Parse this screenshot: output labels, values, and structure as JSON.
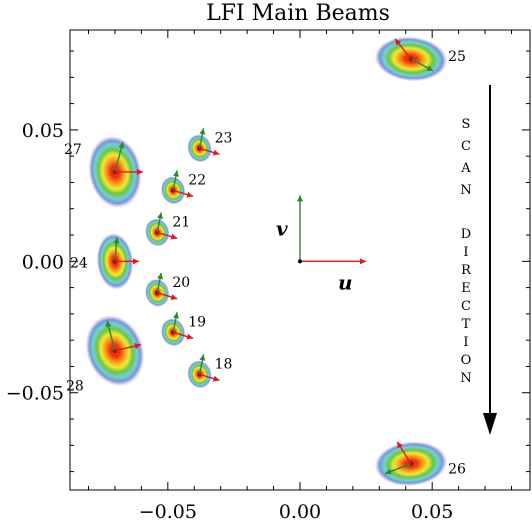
{
  "chart_data": {
    "type": "scatter",
    "title": "LFI Main Beams",
    "xlabel": "",
    "ylabel": "",
    "xlim": [
      -0.087,
      0.087
    ],
    "ylim": [
      -0.087,
      0.088
    ],
    "xticks": [
      -0.05,
      0.0,
      0.05
    ],
    "xtick_labels": [
      "−0.05",
      "0.00",
      "0.05"
    ],
    "yticks": [
      -0.05,
      0.0,
      0.05
    ],
    "ytick_labels": [
      "−0.05",
      "0.00",
      "0.05"
    ],
    "grid": false,
    "beams": [
      {
        "label": "18",
        "x": -0.038,
        "y": -0.043,
        "size": "small"
      },
      {
        "label": "19",
        "x": -0.048,
        "y": -0.027,
        "size": "small"
      },
      {
        "label": "20",
        "x": -0.054,
        "y": -0.012,
        "size": "small"
      },
      {
        "label": "21",
        "x": -0.054,
        "y": 0.011,
        "size": "small"
      },
      {
        "label": "22",
        "x": -0.048,
        "y": 0.027,
        "size": "small"
      },
      {
        "label": "23",
        "x": -0.038,
        "y": 0.043,
        "size": "small"
      },
      {
        "label": "24",
        "x": -0.07,
        "y": 0.0,
        "size": "medium"
      },
      {
        "label": "25",
        "x": 0.042,
        "y": 0.077,
        "size": "large"
      },
      {
        "label": "26",
        "x": 0.042,
        "y": -0.077,
        "size": "large"
      },
      {
        "label": "27",
        "x": -0.07,
        "y": 0.034,
        "size": "large"
      },
      {
        "label": "28",
        "x": -0.07,
        "y": -0.034,
        "size": "large"
      }
    ],
    "uv_axes": {
      "u_label": "u",
      "v_label": "v"
    },
    "scan_direction": {
      "word1": [
        "S",
        "C",
        "A",
        "N"
      ],
      "word2": [
        "D",
        "I",
        "R",
        "E",
        "C",
        "T",
        "I",
        "O",
        "N"
      ]
    },
    "colors": {
      "arrow_red": "#e8141e",
      "arrow_green": "#2a8a2a",
      "beam_core": "#ee2f12",
      "beam_orange": "#f7931c",
      "beam_yellow": "#f2ea32",
      "beam_green": "#6cc644",
      "beam_cyan": "#6fd1d6",
      "beam_blue": "#7a93da",
      "beam_lavender": "#c5b4e0"
    }
  }
}
